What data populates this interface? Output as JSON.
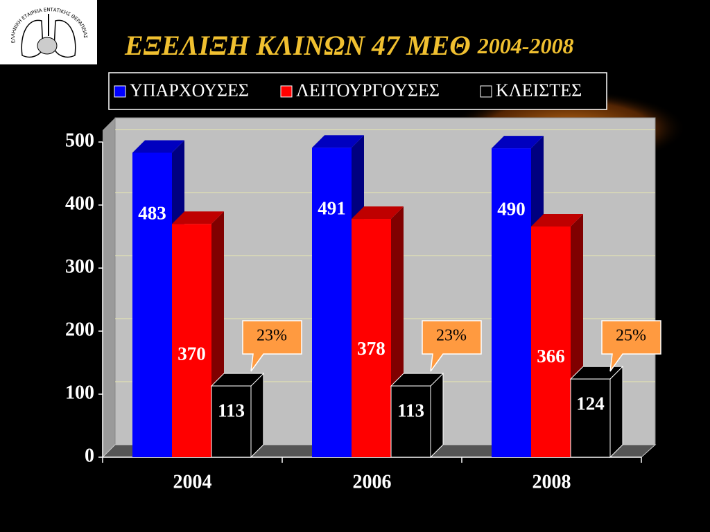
{
  "logo_text": "ΕΛΛΗΝΙΚΗ ΕΤΑΙΡΕΙΑ ΕΝΤΑΤΙΚΗΣ ΘΕΡΑΠΕΙΑΣ",
  "chart_data": {
    "type": "bar3d",
    "title": "ΕΞΕΛΙΞΗ ΚΛΙΝΩΝ 47 ΜΕΘ",
    "subtitle": "2004-2008",
    "categories": [
      "2004",
      "2006",
      "2008"
    ],
    "series": [
      {
        "name": "ΥΠΑΡΧΟΥΣΕΣ",
        "color": "#0000ff",
        "values": [
          483,
          491,
          490
        ]
      },
      {
        "name": "ΛΕΙΤΟΥΡΓΟΥΣΕΣ",
        "color": "#ff0000",
        "values": [
          370,
          378,
          366
        ]
      },
      {
        "name": "ΚΛΕΙΣΤΕΣ",
        "color": "#000000",
        "values": [
          113,
          113,
          124
        ]
      }
    ],
    "annotations": [
      "23%",
      "23%",
      "25%"
    ],
    "ylim": [
      0,
      500
    ],
    "yticks": [
      0,
      100,
      200,
      300,
      400,
      500
    ],
    "grid": true,
    "legend": "top"
  }
}
